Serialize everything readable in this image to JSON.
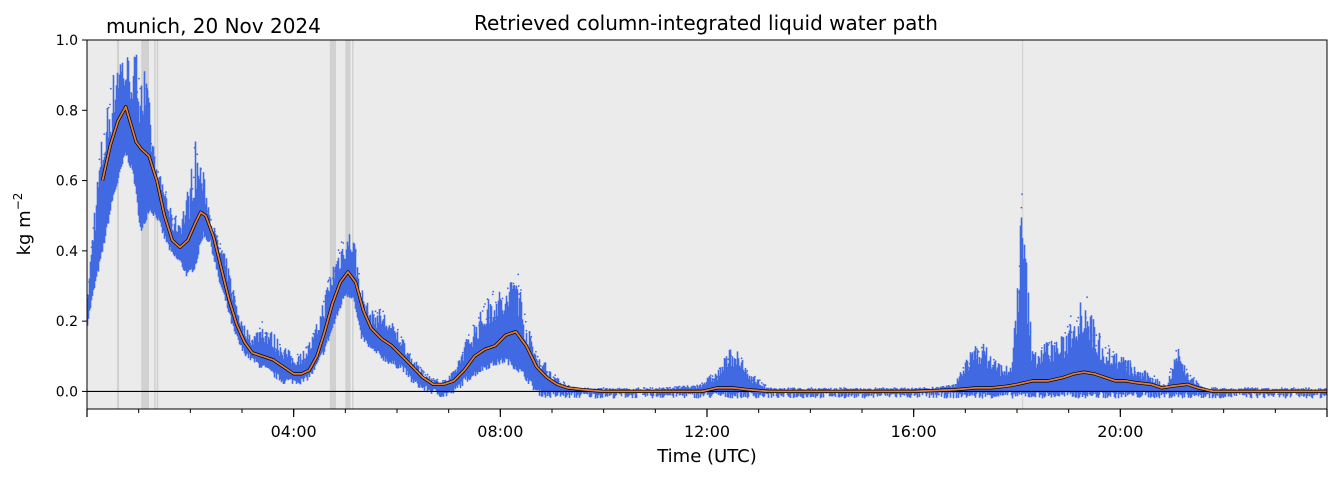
{
  "chart_data": {
    "type": "line",
    "title": "Retrieved column-integrated liquid water path",
    "location_label": "munich, 20 Nov 2024",
    "xlabel": "Time (UTC)",
    "ylabel_main": "kg m",
    "ylabel_exponent": "−2",
    "xlim": [
      0,
      24
    ],
    "ylim": [
      -0.05,
      1.0
    ],
    "x_ticks": [
      {
        "value": 4,
        "label": "04:00"
      },
      {
        "value": 8,
        "label": "08:00"
      },
      {
        "value": 12,
        "label": "12:00"
      },
      {
        "value": 16,
        "label": "16:00"
      },
      {
        "value": 20,
        "label": "20:00"
      }
    ],
    "y_ticks": [
      {
        "value": 0.0,
        "label": "0.0"
      },
      {
        "value": 0.2,
        "label": "0.2"
      },
      {
        "value": 0.4,
        "label": "0.4"
      },
      {
        "value": 0.6,
        "label": "0.6"
      },
      {
        "value": 0.8,
        "label": "0.8"
      },
      {
        "value": 1.0,
        "label": "1.0"
      }
    ],
    "grid": false,
    "background_color": "#ebebeb",
    "zero_line": 0.0,
    "flagged_periods": [
      {
        "start": 0.58,
        "end": 0.62
      },
      {
        "start": 1.05,
        "end": 1.2
      },
      {
        "start": 1.3,
        "end": 1.33
      },
      {
        "start": 1.35,
        "end": 1.38
      },
      {
        "start": 4.7,
        "end": 4.82
      },
      {
        "start": 5.0,
        "end": 5.1
      },
      {
        "start": 5.13,
        "end": 5.16
      },
      {
        "start": 18.1,
        "end": 18.12
      }
    ],
    "series": [
      {
        "kind": "raw",
        "color": "#4169e1",
        "envelope": {
          "x": [
            0.0,
            0.15,
            0.3,
            0.5,
            0.6,
            0.75,
            0.9,
            1.05,
            1.2,
            1.35,
            1.5,
            1.65,
            1.8,
            1.95,
            2.1,
            2.25,
            2.4,
            2.55,
            2.7,
            2.85,
            3.0,
            3.2,
            3.4,
            3.6,
            3.8,
            4.0,
            4.2,
            4.4,
            4.6,
            4.8,
            5.0,
            5.15,
            5.3,
            5.5,
            5.7,
            5.9,
            6.1,
            6.3,
            6.5,
            6.7,
            6.9,
            7.1,
            7.3,
            7.5,
            7.7,
            7.9,
            8.1,
            8.3,
            8.5,
            8.7,
            8.9,
            9.1,
            9.3,
            9.5,
            10.0,
            11.0,
            11.8,
            12.2,
            12.5,
            12.8,
            13.2,
            14.0,
            15.0,
            16.0,
            16.8,
            17.0,
            17.3,
            17.6,
            17.9,
            18.1,
            18.3,
            18.6,
            18.9,
            19.1,
            19.3,
            19.5,
            19.7,
            19.9,
            20.1,
            20.3,
            20.6,
            20.9,
            21.1,
            21.3,
            21.6,
            22.0,
            23.0,
            24.0
          ],
          "low": [
            0.19,
            0.3,
            0.4,
            0.55,
            0.6,
            0.68,
            0.62,
            0.45,
            0.52,
            0.5,
            0.44,
            0.39,
            0.37,
            0.33,
            0.36,
            0.45,
            0.42,
            0.32,
            0.25,
            0.17,
            0.12,
            0.09,
            0.07,
            0.05,
            0.03,
            0.03,
            0.03,
            0.06,
            0.12,
            0.2,
            0.28,
            0.27,
            0.16,
            0.12,
            0.1,
            0.08,
            0.07,
            0.03,
            0.01,
            0.0,
            -0.01,
            0.0,
            0.03,
            0.05,
            0.07,
            0.08,
            0.09,
            0.07,
            0.04,
            0.0,
            -0.01,
            -0.01,
            -0.01,
            -0.01,
            -0.01,
            -0.01,
            -0.01,
            -0.01,
            -0.01,
            -0.01,
            -0.01,
            -0.01,
            -0.01,
            -0.01,
            -0.01,
            -0.01,
            -0.01,
            -0.01,
            -0.01,
            -0.01,
            -0.01,
            -0.01,
            -0.01,
            -0.01,
            -0.01,
            -0.01,
            -0.01,
            -0.01,
            -0.01,
            -0.01,
            -0.01,
            -0.01,
            -0.01,
            -0.01,
            -0.01,
            -0.01,
            -0.01,
            -0.01
          ],
          "high": [
            0.25,
            0.55,
            0.75,
            0.9,
            1.0,
            0.97,
            0.96,
            1.0,
            0.84,
            0.63,
            0.6,
            0.5,
            0.5,
            0.58,
            0.72,
            0.63,
            0.5,
            0.43,
            0.38,
            0.29,
            0.2,
            0.16,
            0.2,
            0.17,
            0.14,
            0.1,
            0.12,
            0.17,
            0.28,
            0.39,
            0.45,
            0.47,
            0.3,
            0.23,
            0.24,
            0.2,
            0.16,
            0.1,
            0.06,
            0.04,
            0.03,
            0.06,
            0.14,
            0.2,
            0.25,
            0.3,
            0.28,
            0.38,
            0.2,
            0.12,
            0.08,
            0.04,
            0.02,
            0.01,
            0.01,
            0.01,
            0.02,
            0.06,
            0.14,
            0.06,
            0.01,
            0.01,
            0.01,
            0.01,
            0.02,
            0.1,
            0.15,
            0.09,
            0.07,
            0.57,
            0.12,
            0.15,
            0.16,
            0.24,
            0.3,
            0.2,
            0.14,
            0.12,
            0.1,
            0.07,
            0.05,
            0.02,
            0.14,
            0.06,
            0.01,
            0.01,
            0.01,
            0.01
          ]
        }
      },
      {
        "kind": "smoothed",
        "color": "#e07b3a",
        "x": [
          0.3,
          0.45,
          0.6,
          0.75,
          0.85,
          0.95,
          1.05,
          1.2,
          1.35,
          1.5,
          1.65,
          1.8,
          1.95,
          2.1,
          2.2,
          2.3,
          2.45,
          2.6,
          2.75,
          2.9,
          3.05,
          3.2,
          3.4,
          3.6,
          3.8,
          4.0,
          4.15,
          4.3,
          4.45,
          4.6,
          4.75,
          4.9,
          5.05,
          5.2,
          5.35,
          5.5,
          5.7,
          5.9,
          6.1,
          6.3,
          6.5,
          6.7,
          6.9,
          7.1,
          7.3,
          7.5,
          7.7,
          7.9,
          8.1,
          8.3,
          8.5,
          8.7,
          8.9,
          9.1,
          9.3,
          9.6,
          10.0,
          11.0,
          11.9,
          12.2,
          12.5,
          12.8,
          13.2,
          14.0,
          15.0,
          16.0,
          16.8,
          17.2,
          17.5,
          17.8,
          18.0,
          18.3,
          18.6,
          18.9,
          19.1,
          19.3,
          19.5,
          19.7,
          19.9,
          20.1,
          20.3,
          20.6,
          20.8,
          21.0,
          21.3,
          21.5,
          21.8,
          22.5,
          23.0,
          24.0
        ],
        "y": [
          0.6,
          0.7,
          0.77,
          0.81,
          0.76,
          0.71,
          0.69,
          0.67,
          0.6,
          0.5,
          0.43,
          0.41,
          0.43,
          0.48,
          0.51,
          0.5,
          0.44,
          0.35,
          0.26,
          0.19,
          0.14,
          0.11,
          0.1,
          0.09,
          0.07,
          0.05,
          0.05,
          0.06,
          0.1,
          0.17,
          0.25,
          0.31,
          0.34,
          0.31,
          0.23,
          0.18,
          0.15,
          0.13,
          0.1,
          0.07,
          0.04,
          0.02,
          0.02,
          0.03,
          0.06,
          0.1,
          0.12,
          0.13,
          0.16,
          0.17,
          0.13,
          0.07,
          0.04,
          0.02,
          0.01,
          0.005,
          0.0,
          0.0,
          0.0,
          0.01,
          0.01,
          0.005,
          0.0,
          0.0,
          0.0,
          0.0,
          0.005,
          0.01,
          0.01,
          0.015,
          0.02,
          0.03,
          0.03,
          0.04,
          0.05,
          0.055,
          0.05,
          0.04,
          0.03,
          0.03,
          0.025,
          0.02,
          0.01,
          0.015,
          0.02,
          0.01,
          0.0,
          0.0,
          0.0,
          0.0
        ]
      }
    ]
  }
}
